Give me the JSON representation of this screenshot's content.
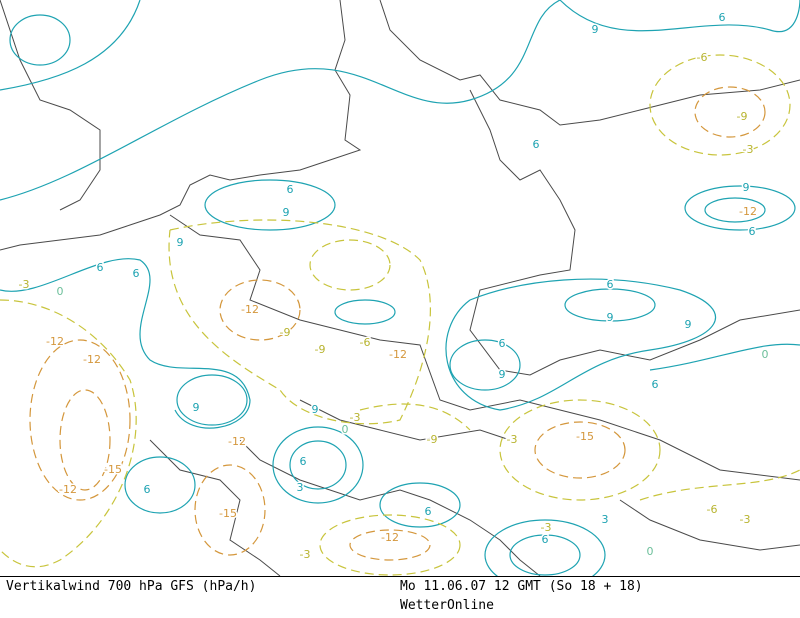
{
  "footer": {
    "title": "Vertikalwind 700 hPa GFS (hPa/h)",
    "run": "Mo 11.06.07 12 GMT (So 18 + 18)",
    "source": "WetterOnline"
  },
  "contour_labels": [
    9,
    6,
    -6,
    -9,
    -3,
    6,
    9,
    -12,
    6,
    6,
    9,
    6,
    6,
    -3,
    0,
    9,
    -12,
    -9,
    -9,
    -6,
    -12,
    6,
    9,
    9,
    6,
    9,
    6,
    0,
    -12,
    -12,
    9,
    -12,
    9,
    -3,
    0,
    -9,
    -3,
    -15,
    -15,
    -12,
    6,
    6,
    3,
    6,
    -15,
    -12,
    -3,
    -3,
    6,
    3,
    -6,
    -3,
    0
  ]
}
